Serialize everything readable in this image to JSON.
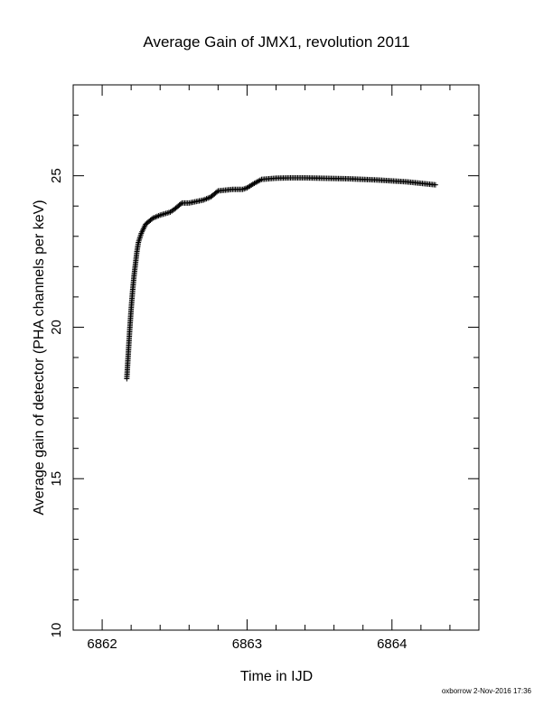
{
  "chart_data": {
    "type": "scatter",
    "marker": "plus",
    "title": "Average Gain of JMX1, revolution 2011",
    "xlabel": "Time in IJD",
    "ylabel": "Average gain of detector (PHA channels per keV)",
    "xlim": [
      6861.8,
      6864.6
    ],
    "ylim": [
      10,
      28
    ],
    "xticks": [
      6862,
      6863,
      6864
    ],
    "xtick_labels": [
      "6862",
      "6863",
      "6864"
    ],
    "yticks": [
      10,
      15,
      20,
      25
    ],
    "ytick_labels": [
      "10",
      "15",
      "20",
      "25"
    ],
    "grid": false,
    "legend": "none",
    "series": [
      {
        "x": [
          6862.17,
          6862.18,
          6862.19,
          6862.2,
          6862.21,
          6862.22,
          6862.23,
          6862.24,
          6862.25,
          6862.27,
          6862.3,
          6862.35,
          6862.4,
          6862.47,
          6862.5,
          6862.55,
          6862.6,
          6862.7,
          6862.75,
          6862.8,
          6862.9,
          6862.97,
          6863.0,
          6863.05,
          6863.1,
          6863.2,
          6863.3,
          6863.4,
          6863.5,
          6863.6,
          6863.7,
          6863.8,
          6863.9,
          6864.0,
          6864.1,
          6864.2,
          6864.3
        ],
        "y": [
          18.3,
          19.1,
          19.9,
          20.6,
          21.2,
          21.7,
          22.1,
          22.5,
          22.8,
          23.1,
          23.4,
          23.6,
          23.7,
          23.8,
          23.9,
          24.1,
          24.1,
          24.2,
          24.3,
          24.5,
          24.55,
          24.55,
          24.6,
          24.75,
          24.88,
          24.92,
          24.93,
          24.93,
          24.92,
          24.91,
          24.9,
          24.88,
          24.86,
          24.83,
          24.8,
          24.75,
          24.7
        ]
      }
    ]
  },
  "footer": "oxborrow  2-Nov-2016 17:36"
}
